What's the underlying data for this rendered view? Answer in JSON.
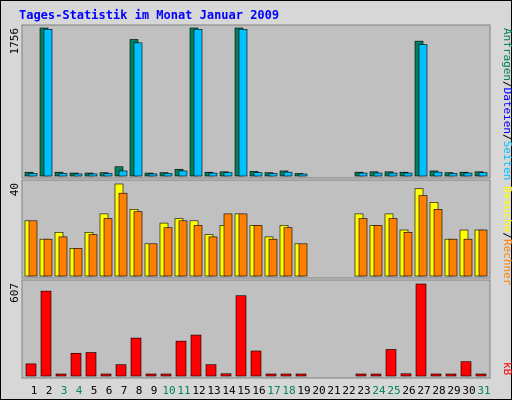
{
  "title": "Tages-Statistik im Monat Januar 2009",
  "legend": {
    "panel1": {
      "anfragen": "Anfragen",
      "sep1": "/",
      "dateien": "Dateien",
      "sep2": "/",
      "seiten": "Seiten"
    },
    "panel2": {
      "besuche": "Besuche",
      "sep": "/",
      "rechner": "Rechner"
    },
    "panel3": {
      "kb": "kB"
    }
  },
  "colors": {
    "anfragen": "#00805C",
    "dateien": "#0000FF",
    "seiten": "#00C0FF",
    "besuche": "#FFFF00",
    "rechner": "#FF8000",
    "kb": "#FF0000",
    "title": "#0000FF",
    "panel_bg": "#C0C0C0",
    "frame_bg": "#D7D7D7",
    "weekend_label": "#00805C"
  },
  "chart_data": [
    {
      "type": "bar",
      "panel": "hits",
      "ymax_label": "1756",
      "ylim": [
        0,
        1756
      ],
      "categories": [
        "1",
        "2",
        "3",
        "4",
        "5",
        "6",
        "7",
        "8",
        "9",
        "10",
        "11",
        "12",
        "13",
        "14",
        "15",
        "16",
        "17",
        "18",
        "19",
        "20",
        "21",
        "22",
        "23",
        "24",
        "25",
        "26",
        "27",
        "28",
        "29",
        "30",
        "31"
      ],
      "weekend": [
        "3",
        "4",
        "10",
        "11",
        "17",
        "18",
        "24",
        "25",
        "31"
      ],
      "series": [
        {
          "name": "Anfragen",
          "values": [
            45,
            1756,
            45,
            35,
            35,
            40,
            110,
            1620,
            35,
            40,
            80,
            1756,
            45,
            50,
            1756,
            55,
            40,
            60,
            30,
            0,
            0,
            0,
            45,
            50,
            50,
            45,
            1600,
            60,
            40,
            45,
            50
          ]
        },
        {
          "name": "Seiten",
          "values": [
            30,
            1740,
            30,
            25,
            25,
            30,
            60,
            1580,
            25,
            30,
            60,
            1740,
            35,
            40,
            1740,
            40,
            30,
            45,
            20,
            0,
            0,
            0,
            35,
            35,
            35,
            35,
            1560,
            45,
            30,
            35,
            40
          ]
        }
      ]
    },
    {
      "type": "bar",
      "panel": "visits",
      "ymax_label": "40",
      "ylim": [
        0,
        40
      ],
      "categories": [
        "1",
        "2",
        "3",
        "4",
        "5",
        "6",
        "7",
        "8",
        "9",
        "10",
        "11",
        "12",
        "13",
        "14",
        "15",
        "16",
        "17",
        "18",
        "19",
        "20",
        "21",
        "22",
        "23",
        "24",
        "25",
        "26",
        "27",
        "28",
        "29",
        "30",
        "31"
      ],
      "series": [
        {
          "name": "Besuche",
          "values": [
            24,
            16,
            19,
            12,
            19,
            27,
            40,
            29,
            14,
            23,
            25,
            24,
            18,
            22,
            27,
            22,
            17,
            22,
            14,
            0,
            0,
            0,
            27,
            22,
            27,
            20,
            38,
            32,
            16,
            20,
            20
          ]
        },
        {
          "name": "Rechner",
          "values": [
            24,
            16,
            17,
            12,
            18,
            25,
            36,
            28,
            14,
            21,
            24,
            22,
            17,
            27,
            27,
            22,
            16,
            21,
            14,
            0,
            0,
            0,
            25,
            22,
            25,
            19,
            35,
            29,
            16,
            16,
            20
          ]
        }
      ]
    },
    {
      "type": "bar",
      "panel": "traffic",
      "ymax_label": "607",
      "ylim": [
        0,
        607
      ],
      "categories": [
        "1",
        "2",
        "3",
        "4",
        "5",
        "6",
        "7",
        "8",
        "9",
        "10",
        "11",
        "12",
        "13",
        "14",
        "15",
        "16",
        "17",
        "18",
        "19",
        "20",
        "21",
        "22",
        "23",
        "24",
        "25",
        "26",
        "27",
        "28",
        "29",
        "30",
        "31"
      ],
      "series": [
        {
          "name": "kB",
          "values": [
            80,
            560,
            8,
            150,
            155,
            8,
            75,
            250,
            8,
            8,
            230,
            270,
            75,
            15,
            530,
            165,
            10,
            10,
            8,
            0,
            0,
            0,
            10,
            10,
            175,
            15,
            607,
            8,
            8,
            95,
            8
          ]
        }
      ]
    }
  ]
}
